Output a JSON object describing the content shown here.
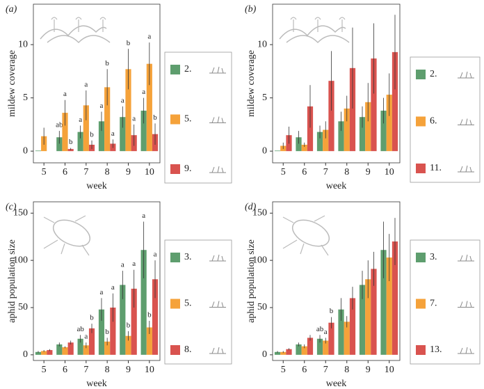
{
  "chart_data": [
    {
      "type": "bar",
      "panel": "(a)",
      "xlabel": "week",
      "ylabel": "mildew coverage",
      "categories": [
        5,
        6,
        7,
        8,
        9,
        10
      ],
      "ylim": [
        -1.1,
        13.8
      ],
      "yticks": [
        0,
        5,
        10
      ],
      "series": [
        {
          "name": "2.",
          "color": "#5e9e6e",
          "values": [
            0.05,
            1.3,
            1.8,
            2.8,
            3.2,
            3.8
          ],
          "errors": [
            0,
            0.6,
            0.6,
            0.9,
            1.0,
            1.2
          ],
          "annotations": [
            null,
            "ab",
            "a",
            "a",
            "a",
            "a"
          ]
        },
        {
          "name": "5.",
          "color": "#f5a23a",
          "values": [
            1.4,
            3.6,
            4.3,
            6.0,
            7.7,
            8.2
          ],
          "errors": [
            0.8,
            1.2,
            1.4,
            1.7,
            1.9,
            2.0
          ],
          "annotations": [
            null,
            "a",
            "a",
            "b",
            "b",
            "a"
          ]
        },
        {
          "name": "9.",
          "color": "#d9534f",
          "values": [
            0,
            0.2,
            0.6,
            0.7,
            1.5,
            1.6
          ],
          "errors": [
            0,
            0.1,
            0.4,
            0.4,
            1.0,
            1.0
          ],
          "annotations": [
            null,
            "b",
            "b",
            "a",
            "a",
            "b"
          ]
        }
      ]
    },
    {
      "type": "bar",
      "panel": "(b)",
      "xlabel": "week",
      "ylabel": "mildew coverage",
      "categories": [
        5,
        6,
        7,
        8,
        9,
        10
      ],
      "ylim": [
        -1.1,
        13.8
      ],
      "yticks": [
        0,
        5,
        10
      ],
      "series": [
        {
          "name": "2.",
          "color": "#5e9e6e",
          "values": [
            0.05,
            1.3,
            1.8,
            2.8,
            3.2,
            3.8
          ],
          "errors": [
            0,
            0.6,
            0.6,
            0.9,
            1.0,
            1.2
          ]
        },
        {
          "name": "6.",
          "color": "#f5a23a",
          "values": [
            0.5,
            0.6,
            2.0,
            4.0,
            4.6,
            5.3
          ],
          "errors": [
            0.3,
            0.2,
            0.8,
            1.2,
            1.8,
            2.0
          ]
        },
        {
          "name": "11.",
          "color": "#d9534f",
          "values": [
            1.5,
            4.2,
            6.6,
            7.8,
            8.7,
            9.3
          ],
          "errors": [
            0.8,
            2.0,
            2.8,
            3.8,
            3.3,
            3.5
          ]
        }
      ]
    },
    {
      "type": "bar",
      "panel": "(c)",
      "xlabel": "week",
      "ylabel": "aphid population size",
      "categories": [
        5,
        6,
        7,
        8,
        9,
        10
      ],
      "ylim": [
        -6,
        162
      ],
      "yticks": [
        0,
        50,
        100,
        150
      ],
      "series": [
        {
          "name": "3.",
          "color": "#5e9e6e",
          "values": [
            3,
            11,
            17,
            48,
            74,
            111
          ],
          "errors": [
            1,
            2,
            4,
            12,
            15,
            30
          ],
          "annotations": [
            null,
            null,
            "ab",
            "a",
            "a",
            "a"
          ]
        },
        {
          "name": "5.",
          "color": "#f5a23a",
          "values": [
            4,
            8,
            10,
            14,
            20,
            29
          ],
          "errors": [
            1,
            1,
            3,
            4,
            5,
            7
          ],
          "annotations": [
            null,
            null,
            "a",
            "b",
            "b",
            "b"
          ]
        },
        {
          "name": "8.",
          "color": "#d9534f",
          "values": [
            5,
            13,
            28,
            50,
            70,
            80
          ],
          "errors": [
            1,
            2,
            5,
            15,
            20,
            20
          ],
          "annotations": [
            null,
            null,
            "b",
            "a",
            "a",
            "a"
          ]
        }
      ]
    },
    {
      "type": "bar",
      "panel": "(d)",
      "xlabel": "week",
      "ylabel": "aphid population size",
      "categories": [
        5,
        6,
        7,
        8,
        9,
        10
      ],
      "ylim": [
        -6,
        162
      ],
      "yticks": [
        0,
        50,
        100,
        150
      ],
      "series": [
        {
          "name": "3.",
          "color": "#5e9e6e",
          "values": [
            3,
            11,
            17,
            48,
            74,
            111
          ],
          "errors": [
            1,
            2,
            4,
            12,
            15,
            30
          ],
          "annotations": [
            null,
            null,
            "ab",
            null,
            null,
            null
          ]
        },
        {
          "name": "7.",
          "color": "#f5a23a",
          "values": [
            3,
            9,
            15,
            35,
            80,
            103
          ],
          "errors": [
            1,
            2,
            3,
            6,
            20,
            25
          ],
          "annotations": [
            null,
            null,
            "a",
            null,
            null,
            null
          ]
        },
        {
          "name": "13.",
          "color": "#d9534f",
          "values": [
            6,
            18,
            34,
            60,
            91,
            120
          ],
          "errors": [
            1,
            3,
            6,
            12,
            18,
            25
          ],
          "annotations": [
            null,
            null,
            "b",
            null,
            null,
            null
          ]
        }
      ]
    }
  ]
}
